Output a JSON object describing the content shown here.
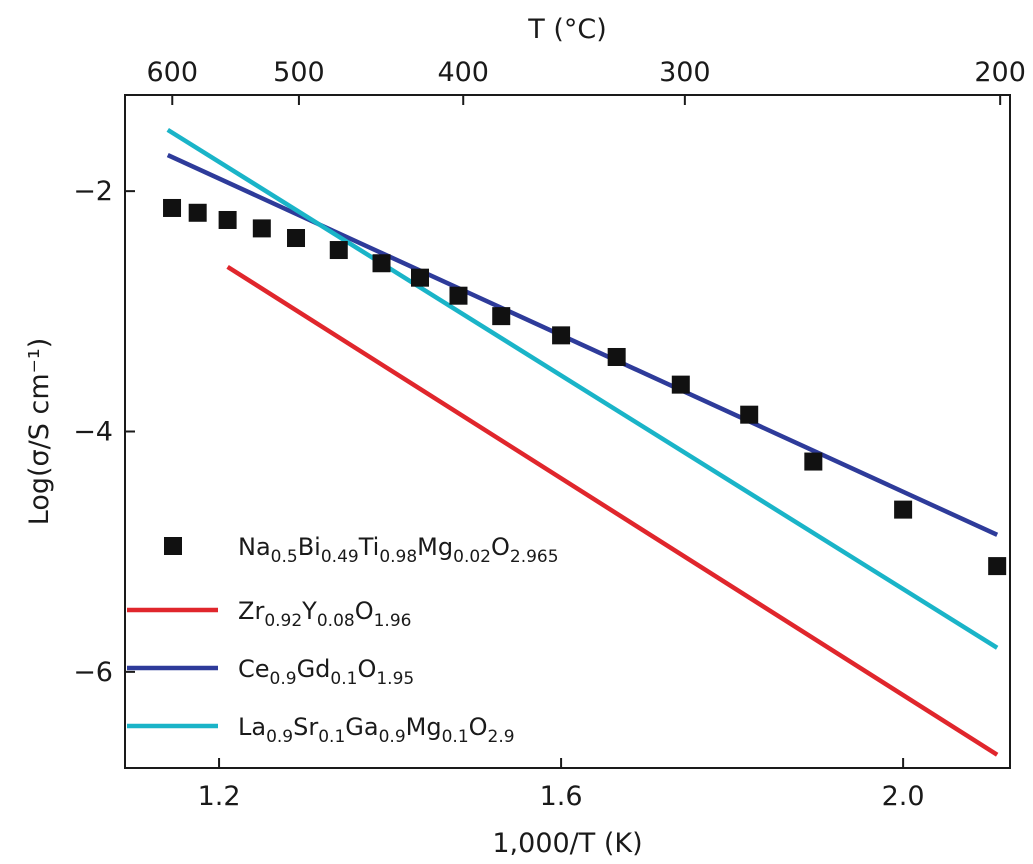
{
  "chart_data": {
    "type": "scatter",
    "title": "",
    "xlabel": "1,000/T (K)",
    "ylabel": "Log(σ/S cm⁻¹)",
    "top_xlabel": "T (°C)",
    "xlim": [
      1.09,
      2.125
    ],
    "ylim": [
      -6.8,
      -1.2
    ],
    "x_ticks": [
      1.2,
      1.6,
      2.0
    ],
    "x_tick_labels": [
      "1.2",
      "1.6",
      "2.0"
    ],
    "y_ticks": [
      -2,
      -4,
      -6
    ],
    "y_tick_labels": [
      "−2",
      "−4",
      "−6"
    ],
    "top_ticks_celsius": [
      600,
      500,
      400,
      300,
      200
    ],
    "top_tick_labels": [
      "600",
      "500",
      "400",
      "300",
      "200"
    ],
    "legend_position": "bottom-left",
    "series": [
      {
        "name": "Na0.5Bi0.49Ti0.98Mg0.02O2.965",
        "legend_parts": [
          [
            "Na",
            ""
          ],
          [
            "0.5",
            "sub"
          ],
          [
            "Bi",
            ""
          ],
          [
            "0.49",
            "sub"
          ],
          [
            "Ti",
            ""
          ],
          [
            "0.98",
            "sub"
          ],
          [
            "Mg",
            ""
          ],
          [
            "0.02",
            "sub"
          ],
          [
            "O",
            ""
          ],
          [
            "2.965",
            "sub"
          ]
        ],
        "kind": "markers",
        "color": "#111111",
        "x": [
          1.145,
          1.175,
          1.21,
          1.25,
          1.29,
          1.34,
          1.39,
          1.435,
          1.48,
          1.53,
          1.6,
          1.665,
          1.74,
          1.82,
          1.895,
          2.0,
          2.11
        ],
        "y": [
          -2.14,
          -2.18,
          -2.24,
          -2.31,
          -2.39,
          -2.49,
          -2.6,
          -2.72,
          -2.87,
          -3.04,
          -3.2,
          -3.38,
          -3.61,
          -3.86,
          -4.25,
          -4.65,
          -5.12
        ]
      },
      {
        "name": "Zr0.92Y0.08O1.96",
        "legend_parts": [
          [
            "Zr",
            ""
          ],
          [
            "0.92",
            "sub"
          ],
          [
            "Y",
            ""
          ],
          [
            "0.08",
            "sub"
          ],
          [
            "O",
            ""
          ],
          [
            "1.96",
            "sub"
          ]
        ],
        "kind": "line",
        "color": "#e0262c",
        "x": [
          1.21,
          2.11
        ],
        "y": [
          -2.63,
          -6.69
        ]
      },
      {
        "name": "Ce0.9Gd0.1O1.95",
        "legend_parts": [
          [
            "Ce",
            ""
          ],
          [
            "0.9",
            "sub"
          ],
          [
            "Gd",
            ""
          ],
          [
            "0.1",
            "sub"
          ],
          [
            "O",
            ""
          ],
          [
            "1.95",
            "sub"
          ]
        ],
        "kind": "line",
        "color": "#2e3b9a",
        "x": [
          1.14,
          2.11
        ],
        "y": [
          -1.7,
          -4.86
        ]
      },
      {
        "name": "La0.9Sr0.1Ga0.9Mg0.1O2.9",
        "legend_parts": [
          [
            "La",
            ""
          ],
          [
            "0.9",
            "sub"
          ],
          [
            "Sr",
            ""
          ],
          [
            "0.1",
            "sub"
          ],
          [
            "Ga",
            ""
          ],
          [
            "0.9",
            "sub"
          ],
          [
            "Mg",
            ""
          ],
          [
            "0.1",
            "sub"
          ],
          [
            "O",
            ""
          ],
          [
            "2.9",
            "sub"
          ]
        ],
        "kind": "line",
        "color": "#1ab4c8",
        "x": [
          1.14,
          2.11
        ],
        "y": [
          -1.49,
          -5.8
        ]
      }
    ]
  }
}
